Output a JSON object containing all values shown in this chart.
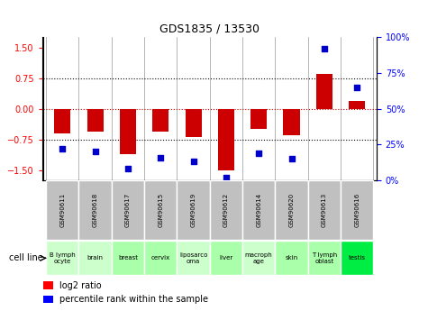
{
  "title": "GDS1835 / 13530",
  "samples": [
    "GSM90611",
    "GSM90618",
    "GSM90617",
    "GSM90615",
    "GSM90619",
    "GSM90612",
    "GSM90614",
    "GSM90620",
    "GSM90613",
    "GSM90616"
  ],
  "cell_lines": [
    "B lymph\nocyte",
    "brain",
    "breast",
    "cervix",
    "liposarco\noma",
    "liver",
    "macroph\nage",
    "skin",
    "T lymph\noblast",
    "testis"
  ],
  "cell_colors": [
    "#ccffcc",
    "#ccffcc",
    "#aaffaa",
    "#aaffaa",
    "#ccffcc",
    "#aaffaa",
    "#ccffcc",
    "#aaffaa",
    "#aaffaa",
    "#00ee44"
  ],
  "log2_ratio": [
    -0.6,
    -0.55,
    -1.1,
    -0.55,
    -0.7,
    -1.5,
    -0.5,
    -0.65,
    0.85,
    0.2
  ],
  "percentile_rank": [
    22,
    20,
    8,
    16,
    13,
    2,
    19,
    15,
    92,
    65
  ],
  "ylim_left": [
    -1.75,
    1.75
  ],
  "ylim_right": [
    0,
    100
  ],
  "yticks_left": [
    -1.5,
    -0.75,
    0,
    0.75,
    1.5
  ],
  "yticks_right": [
    0,
    25,
    50,
    75,
    100
  ],
  "bar_color": "#cc0000",
  "dot_color": "#0000cc",
  "zero_line_color": "#cc0000",
  "bg_color": "#ffffff",
  "sample_box_color": "#c0c0c0",
  "sample_box_edge": "#888888"
}
